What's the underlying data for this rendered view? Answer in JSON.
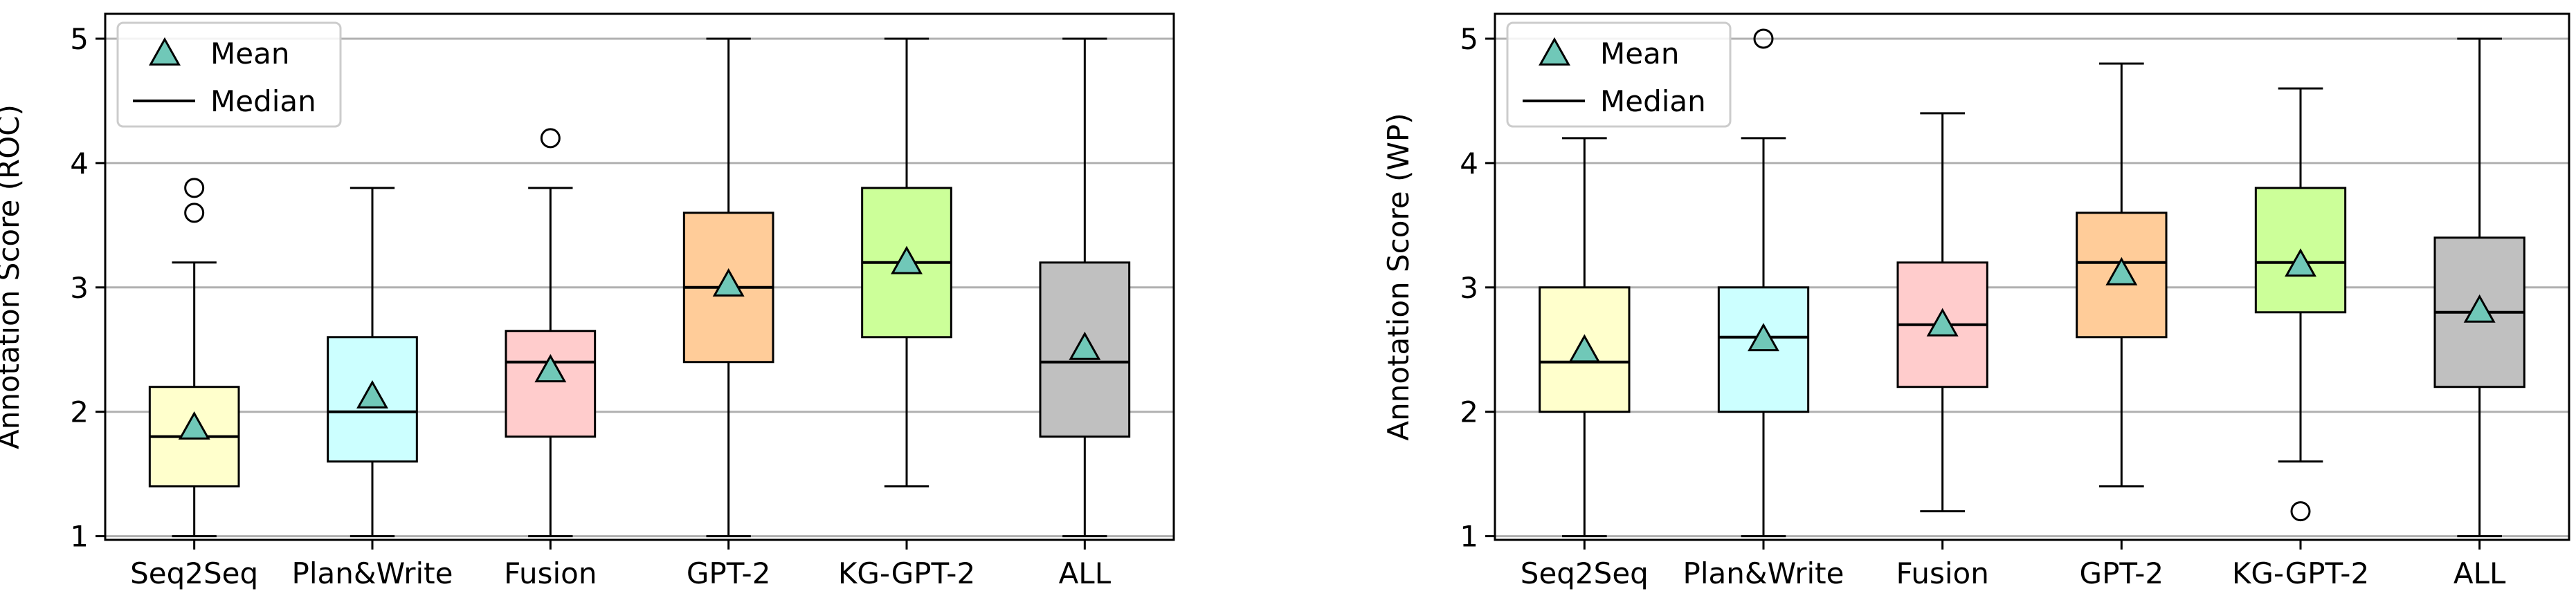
{
  "chart_data": [
    {
      "type": "box",
      "ylabel": "Annotation Score (ROC)",
      "ylim": [
        0.97,
        5.2
      ],
      "yticks": [
        1,
        2,
        3,
        4,
        5
      ],
      "grid": "horizontal",
      "legend_position": "top-left",
      "legend": [
        {
          "label": "Mean",
          "marker": "triangle"
        },
        {
          "label": "Median",
          "marker": "line"
        }
      ],
      "categories": [
        "Seq2Seq",
        "Plan&Write",
        "Fusion",
        "GPT-2",
        "KG-GPT-2",
        "ALL"
      ],
      "boxes": [
        {
          "whisker_low": 1.0,
          "q1": 1.4,
          "median": 1.8,
          "q3": 2.2,
          "whisker_high": 3.2,
          "mean": 1.87,
          "outliers": [
            3.6,
            3.8
          ],
          "color": "#ffffcc"
        },
        {
          "whisker_low": 1.0,
          "q1": 1.6,
          "median": 2.0,
          "q3": 2.6,
          "whisker_high": 3.8,
          "mean": 2.12,
          "outliers": [],
          "color": "#ccffff"
        },
        {
          "whisker_low": 1.0,
          "q1": 1.8,
          "median": 2.4,
          "q3": 2.65,
          "whisker_high": 3.8,
          "mean": 2.33,
          "outliers": [
            4.2
          ],
          "color": "#ffcccc"
        },
        {
          "whisker_low": 1.0,
          "q1": 2.4,
          "median": 3.0,
          "q3": 3.6,
          "whisker_high": 5.0,
          "mean": 3.02,
          "outliers": [],
          "color": "#ffcc99"
        },
        {
          "whisker_low": 1.4,
          "q1": 2.6,
          "median": 3.2,
          "q3": 3.8,
          "whisker_high": 5.0,
          "mean": 3.2,
          "outliers": [],
          "color": "#ccff99"
        },
        {
          "whisker_low": 1.0,
          "q1": 1.8,
          "median": 2.4,
          "q3": 3.2,
          "whisker_high": 5.0,
          "mean": 2.51,
          "outliers": [],
          "color": "#c0c0c0"
        }
      ]
    },
    {
      "type": "box",
      "ylabel": "Annotation Score (WP)",
      "ylim": [
        0.97,
        5.2
      ],
      "yticks": [
        1,
        2,
        3,
        4,
        5
      ],
      "grid": "horizontal",
      "legend_position": "top-left",
      "legend": [
        {
          "label": "Mean",
          "marker": "triangle"
        },
        {
          "label": "Median",
          "marker": "line"
        }
      ],
      "categories": [
        "Seq2Seq",
        "Plan&Write",
        "Fusion",
        "GPT-2",
        "KG-GPT-2",
        "ALL"
      ],
      "boxes": [
        {
          "whisker_low": 1.0,
          "q1": 2.0,
          "median": 2.4,
          "q3": 3.0,
          "whisker_high": 4.2,
          "mean": 2.49,
          "outliers": [],
          "color": "#ffffcc"
        },
        {
          "whisker_low": 1.0,
          "q1": 2.0,
          "median": 2.6,
          "q3": 3.0,
          "whisker_high": 4.2,
          "mean": 2.58,
          "outliers": [
            5.0
          ],
          "color": "#ccffff"
        },
        {
          "whisker_low": 1.2,
          "q1": 2.2,
          "median": 2.7,
          "q3": 3.2,
          "whisker_high": 4.4,
          "mean": 2.7,
          "outliers": [],
          "color": "#ffcccc"
        },
        {
          "whisker_low": 1.4,
          "q1": 2.6,
          "median": 3.2,
          "q3": 3.6,
          "whisker_high": 4.8,
          "mean": 3.11,
          "outliers": [],
          "color": "#ffcc99"
        },
        {
          "whisker_low": 1.6,
          "q1": 2.8,
          "median": 3.2,
          "q3": 3.8,
          "whisker_high": 4.6,
          "mean": 3.18,
          "outliers": [
            1.2
          ],
          "color": "#ccff99"
        },
        {
          "whisker_low": 1.0,
          "q1": 2.2,
          "median": 2.8,
          "q3": 3.4,
          "whisker_high": 5.0,
          "mean": 2.81,
          "outliers": [],
          "color": "#c0c0c0"
        }
      ]
    }
  ],
  "style": {
    "mean_marker_color": "#70c8b8",
    "grid_color": "#b0b0b0",
    "axis_color": "#000000"
  }
}
